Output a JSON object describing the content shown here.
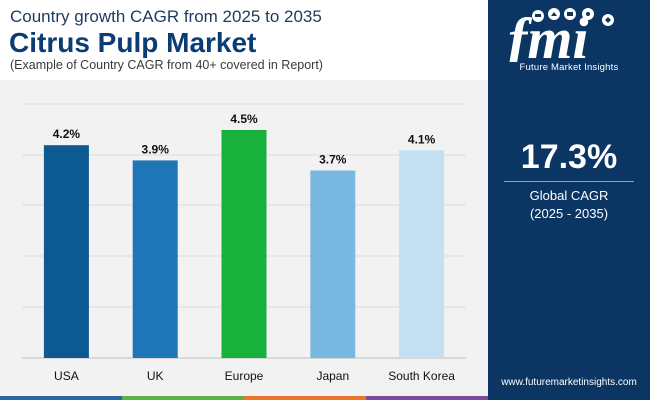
{
  "header": {
    "super_title": "Country growth CAGR from 2025 to 2035",
    "title": "Citrus Pulp Market",
    "subtitle": "(Example of Country CAGR from 40+ covered in Report)"
  },
  "chart_data": {
    "type": "bar",
    "categories": [
      "USA",
      "UK",
      "Europe",
      "Japan",
      "South Korea"
    ],
    "values": [
      4.2,
      3.9,
      4.5,
      3.7,
      4.1
    ],
    "value_labels": [
      "4.2%",
      "3.9%",
      "4.5%",
      "3.7%",
      "4.1%"
    ],
    "bar_colors": [
      "#0d5a93",
      "#1f76b7",
      "#17b13b",
      "#79b8e1",
      "#c3e1f2"
    ],
    "ylim": [
      0,
      4.5
    ],
    "grid": true,
    "title": "",
    "xlabel": "",
    "ylabel": ""
  },
  "side": {
    "logo_text": "Future Market Insights",
    "global_value": "17.3%",
    "global_label": "Global CAGR",
    "global_period": "(2025 - 2035)",
    "website": "www.futuremarketinsights.com"
  },
  "colors": {
    "side_panel": "#0b3563",
    "title": "#0b3d74",
    "chart_bg": "#f2f2f2",
    "footer_strip": [
      "#2a66a6",
      "#5fb045",
      "#e8762d",
      "#7a4a9c"
    ]
  }
}
